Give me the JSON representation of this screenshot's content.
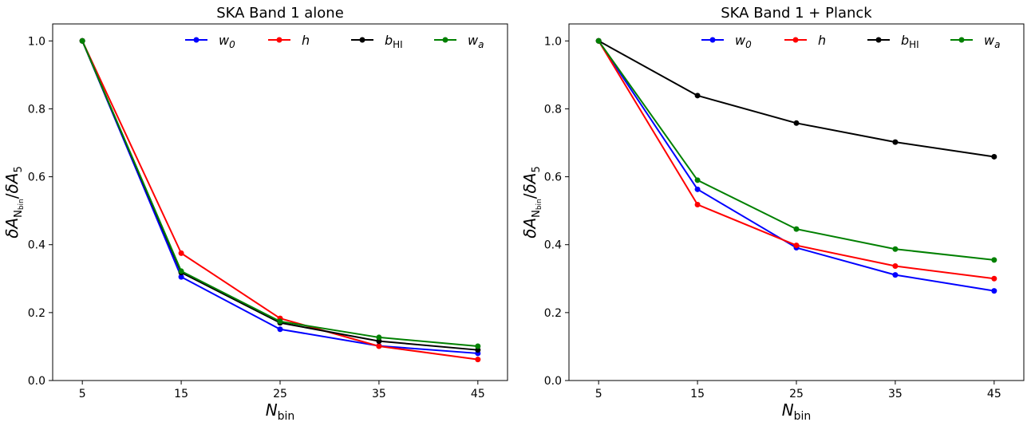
{
  "chart_data": [
    {
      "type": "line",
      "title": "SKA Band 1 alone",
      "xlabel": {
        "main": "N",
        "sub": "bin"
      },
      "ylabel": {
        "d1": "δ",
        "A1": "A",
        "s1": "N",
        "s1b": "bin",
        "slash": "/",
        "d2": "δ",
        "A2": "A",
        "s2": "5"
      },
      "x": [
        5,
        15,
        25,
        35,
        45
      ],
      "x_ticks": [
        "5",
        "15",
        "25",
        "35",
        "45"
      ],
      "y_ticks": [
        "0.0",
        "0.2",
        "0.4",
        "0.6",
        "0.8",
        "1.0"
      ],
      "xlim": [
        2,
        48
      ],
      "ylim": [
        0.0,
        1.05
      ],
      "grid": false,
      "legend_position": "top",
      "series": [
        {
          "name": {
            "main": "w",
            "sub": "0"
          },
          "color": "#0000ff",
          "values": [
            1.0,
            0.305,
            0.151,
            0.102,
            0.08
          ]
        },
        {
          "name": {
            "main": "h",
            "sub": ""
          },
          "color": "#ff0000",
          "values": [
            1.0,
            0.375,
            0.183,
            0.101,
            0.062
          ]
        },
        {
          "name": {
            "main": "b",
            "sub": "HI"
          },
          "color": "#000000",
          "values": [
            1.0,
            0.318,
            0.17,
            0.116,
            0.09
          ]
        },
        {
          "name": {
            "main": "w",
            "sub": "a"
          },
          "color": "#008000",
          "values": [
            1.0,
            0.322,
            0.174,
            0.127,
            0.101
          ]
        }
      ]
    },
    {
      "type": "line",
      "title": "SKA Band 1 + Planck",
      "xlabel": {
        "main": "N",
        "sub": "bin"
      },
      "ylabel": {
        "d1": "δ",
        "A1": "A",
        "s1": "N",
        "s1b": "bin",
        "slash": "/",
        "d2": "δ",
        "A2": "A",
        "s2": "5"
      },
      "x": [
        5,
        15,
        25,
        35,
        45
      ],
      "x_ticks": [
        "5",
        "15",
        "25",
        "35",
        "45"
      ],
      "y_ticks": [
        "0.0",
        "0.2",
        "0.4",
        "0.6",
        "0.8",
        "1.0"
      ],
      "xlim": [
        2,
        48
      ],
      "ylim": [
        0.0,
        1.05
      ],
      "grid": false,
      "legend_position": "top",
      "series": [
        {
          "name": {
            "main": "w",
            "sub": "0"
          },
          "color": "#0000ff",
          "values": [
            1.0,
            0.563,
            0.391,
            0.311,
            0.264
          ]
        },
        {
          "name": {
            "main": "h",
            "sub": ""
          },
          "color": "#ff0000",
          "values": [
            1.0,
            0.518,
            0.398,
            0.337,
            0.3
          ]
        },
        {
          "name": {
            "main": "b",
            "sub": "HI"
          },
          "color": "#000000",
          "values": [
            1.0,
            0.839,
            0.758,
            0.702,
            0.659
          ]
        },
        {
          "name": {
            "main": "w",
            "sub": "a"
          },
          "color": "#008000",
          "values": [
            1.0,
            0.59,
            0.446,
            0.387,
            0.355
          ]
        }
      ]
    }
  ]
}
